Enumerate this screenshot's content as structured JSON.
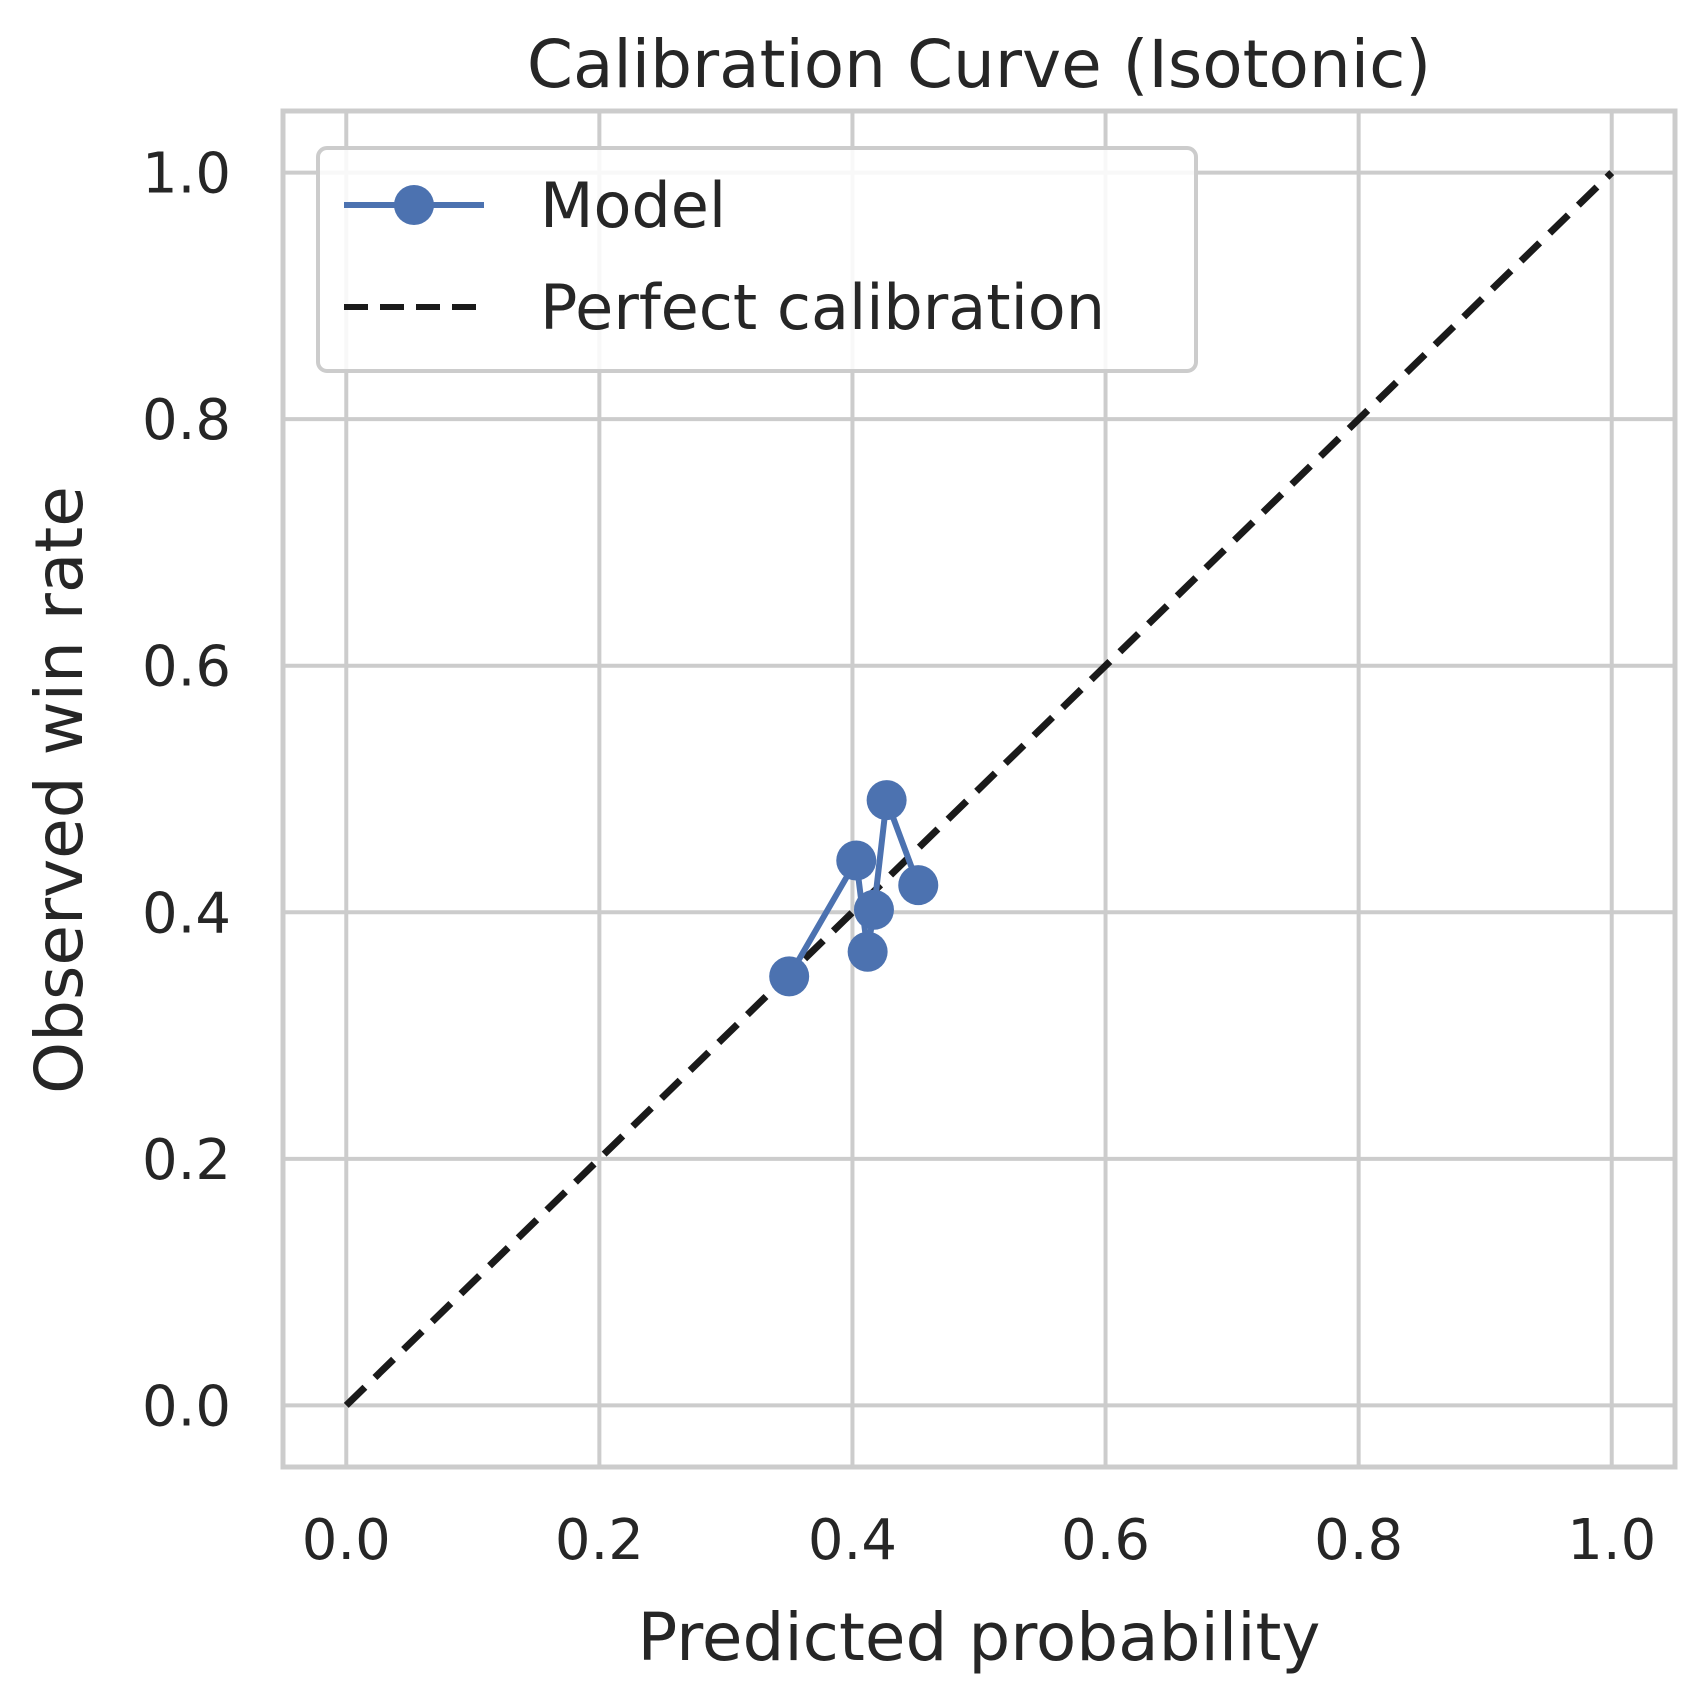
{
  "chart_data": {
    "type": "line",
    "title": "Calibration Curve (Isotonic)",
    "xlabel": "Predicted probability",
    "ylabel": "Observed win rate",
    "xlim": [
      -0.05,
      1.05
    ],
    "ylim": [
      -0.05,
      1.05
    ],
    "xticks": [
      0.0,
      0.2,
      0.4,
      0.6,
      0.8,
      1.0
    ],
    "yticks": [
      0.0,
      0.2,
      0.4,
      0.6,
      0.8,
      1.0
    ],
    "xtick_labels": [
      "0.0",
      "0.2",
      "0.4",
      "0.6",
      "0.8",
      "1.0"
    ],
    "ytick_labels": [
      "0.0",
      "0.2",
      "0.4",
      "0.6",
      "0.8",
      "1.0"
    ],
    "grid": true,
    "legend_position": "top-left",
    "series": [
      {
        "name": "Model",
        "color": "#4c72b0",
        "style": "solid-with-circle-markers",
        "x": [
          0.35,
          0.403,
          0.412,
          0.417,
          0.427,
          0.452
        ],
        "y": [
          0.348,
          0.442,
          0.368,
          0.402,
          0.491,
          0.422
        ]
      },
      {
        "name": "Perfect calibration",
        "color": "#1a1a1a",
        "style": "dashed",
        "x": [
          0.0,
          1.0
        ],
        "y": [
          0.0,
          1.0
        ]
      }
    ]
  }
}
